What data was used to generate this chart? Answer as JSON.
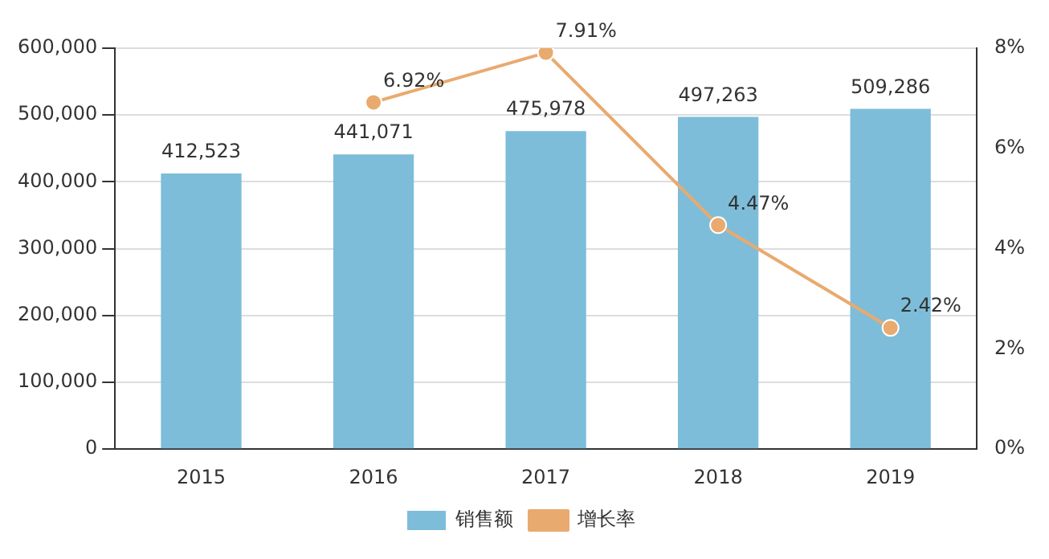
{
  "chart_data": {
    "type": "bar",
    "categories": [
      "2015",
      "2016",
      "2017",
      "2018",
      "2019"
    ],
    "series": [
      {
        "name": "销售额",
        "color": "#7dbdd9",
        "values": [
          412523,
          441071,
          475978,
          497263,
          509286
        ],
        "value_labels": [
          "412,523",
          "441,071",
          "475,978",
          "497,263",
          "509,286"
        ]
      },
      {
        "name": "增长率",
        "type": "line",
        "axis": "y2",
        "color": "#e9aa6f",
        "values": [
          null,
          6.92,
          7.91,
          4.47,
          2.42
        ],
        "value_labels": [
          null,
          "6.92%",
          "7.91%",
          "4.47%",
          "2.42%"
        ],
        "marker": "circle",
        "line_style": "solid"
      }
    ],
    "ylim": [
      0,
      600000
    ],
    "yticks": [
      0,
      {
        "value": 100000,
        "label": "100,000"
      },
      {
        "value": 200000,
        "label": "200,000"
      },
      {
        "value": 300000,
        "label": "300,000"
      },
      {
        "value": 400000,
        "label": "400,000"
      },
      {
        "value": 500000,
        "label": "500,000"
      },
      {
        "value": 600000,
        "label": "600,000"
      }
    ],
    "y2lim": [
      0,
      8
    ],
    "y2ticks": [
      {
        "value": 0,
        "label": "0%"
      },
      {
        "value": 2,
        "label": "2%"
      },
      {
        "value": 4,
        "label": "4%"
      },
      {
        "value": 6,
        "label": "6%"
      },
      {
        "value": 8,
        "label": "8%"
      }
    ],
    "grid": "y",
    "legend": "bottom"
  }
}
